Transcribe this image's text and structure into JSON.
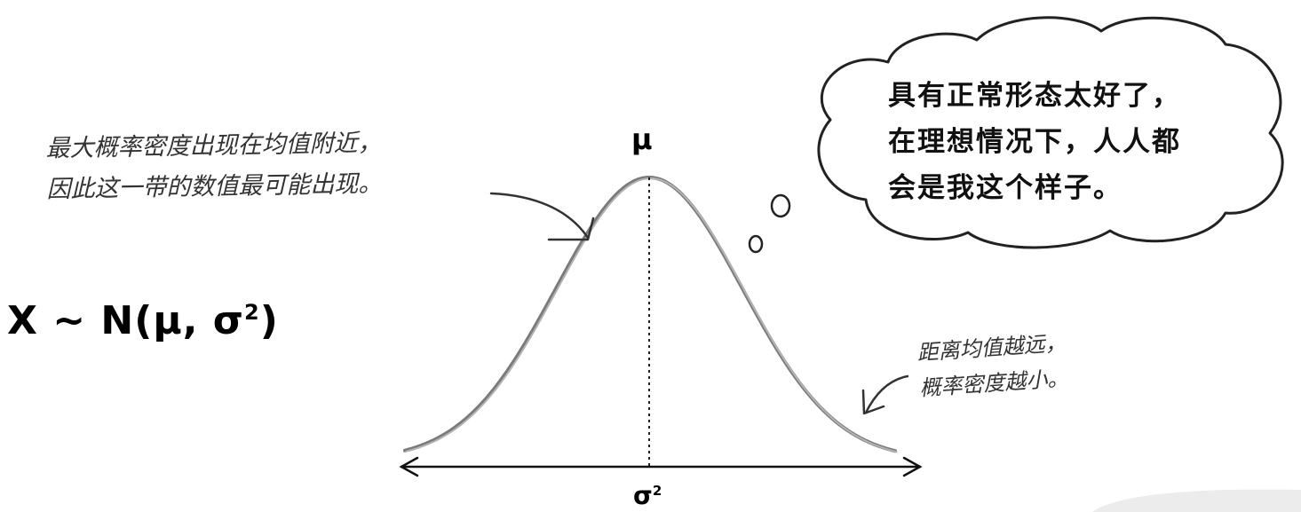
{
  "formula": {
    "main": "X ~ N(μ, σ",
    "sup": "2",
    "close": ")"
  },
  "labels": {
    "mu": "μ",
    "sigma_base": "σ",
    "sigma_sup": "2"
  },
  "notes": {
    "peak_line1": "最大概率密度出现在均值附近，",
    "peak_line2": "因此这一带的数值最可能出现。",
    "tail_line1": "距离均值越远，",
    "tail_line2": "概率密度越小。"
  },
  "thought": {
    "line1": "具有正常形态太好了，",
    "line2": "在理想情况下，人人都",
    "line3": "会是我这个样子。"
  },
  "colors": {
    "curve": "#777777",
    "ink": "#000000",
    "fade": "#e6e6e6"
  }
}
